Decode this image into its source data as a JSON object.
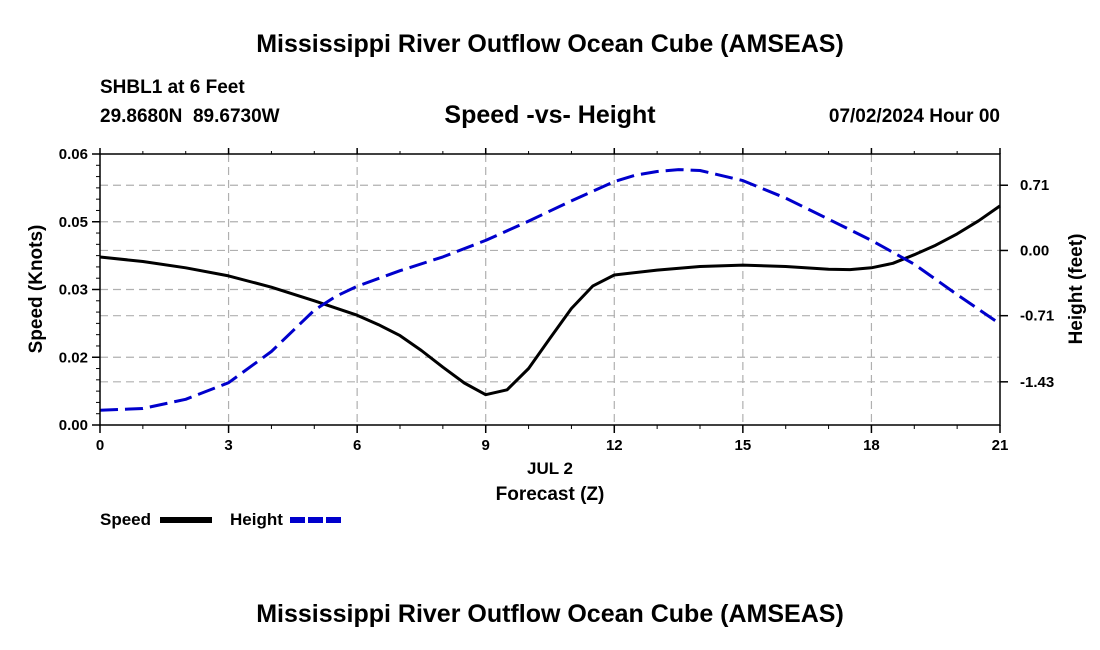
{
  "page": {
    "title": "Mississippi River Outflow Ocean Cube (AMSEAS)",
    "footer_title": "Mississippi River Outflow Ocean Cube (AMSEAS)"
  },
  "header": {
    "station": "SHBL1 at 6 Feet",
    "coordinates": "29.8680N  89.6730W",
    "chart_title": "Speed -vs- Height",
    "datetime": "07/02/2024 Hour 00"
  },
  "colors": {
    "speed": "#000000",
    "height": "#0000cc",
    "grid": "#b0b0b0"
  },
  "chart_data": {
    "type": "line",
    "title": "Speed -vs- Height",
    "xlabel": "Forecast (Z)",
    "x_date_label": "JUL 2",
    "ylabel": "Speed (Knots)",
    "y2label": "Height (feet)",
    "xlim": [
      0,
      21
    ],
    "ylim": [
      0,
      0.06
    ],
    "y2lim": [
      -1.9,
      1.05
    ],
    "x_ticks": [
      0,
      3,
      6,
      9,
      12,
      15,
      18,
      21
    ],
    "x_tick_labels": [
      "0",
      "3",
      "6",
      "9",
      "12",
      "15",
      "18",
      "21"
    ],
    "y_ticks": [
      0,
      0.015,
      0.03,
      0.045,
      0.06
    ],
    "y_tick_labels": [
      "0.00",
      "0.02",
      "0.03",
      "0.05",
      "0.06"
    ],
    "y2_ticks": [
      0.71,
      0,
      -0.71,
      -1.43
    ],
    "y2_tick_labels": [
      "0.71",
      "0.00",
      "-0.71",
      "-1.43"
    ],
    "grid": true,
    "legend": [
      {
        "name": "Speed",
        "style": "solid"
      },
      {
        "name": "Height",
        "style": "dashed"
      }
    ],
    "series": [
      {
        "name": "Speed",
        "axis": "left",
        "style": "solid",
        "x": [
          0,
          1,
          2,
          3,
          4,
          5,
          6,
          6.5,
          7,
          7.5,
          8,
          8.5,
          9,
          9.5,
          10,
          10.5,
          11,
          11.5,
          12,
          13,
          14,
          15,
          16,
          17,
          17.5,
          18,
          18.5,
          19,
          19.5,
          20,
          20.5,
          21
        ],
        "y": [
          0.0372,
          0.0362,
          0.0348,
          0.033,
          0.0305,
          0.0275,
          0.0243,
          0.0222,
          0.0198,
          0.0165,
          0.0128,
          0.0093,
          0.0067,
          0.0078,
          0.0125,
          0.0192,
          0.0258,
          0.0308,
          0.0332,
          0.0343,
          0.0351,
          0.0354,
          0.0351,
          0.0345,
          0.0344,
          0.0348,
          0.0358,
          0.0377,
          0.0398,
          0.0423,
          0.0452,
          0.0485
        ]
      },
      {
        "name": "Height",
        "axis": "right",
        "style": "dashed",
        "x": [
          0,
          1,
          2,
          3,
          4,
          5,
          5.5,
          6,
          7,
          8,
          9,
          10,
          11,
          12,
          12.5,
          13,
          13.5,
          14,
          15,
          16,
          17,
          18,
          19,
          20,
          21
        ],
        "y": [
          -1.74,
          -1.72,
          -1.62,
          -1.44,
          -1.1,
          -0.65,
          -0.5,
          -0.39,
          -0.22,
          -0.07,
          0.11,
          0.32,
          0.54,
          0.75,
          0.82,
          0.86,
          0.88,
          0.87,
          0.76,
          0.57,
          0.34,
          0.11,
          -0.15,
          -0.48,
          -0.8
        ]
      }
    ]
  }
}
